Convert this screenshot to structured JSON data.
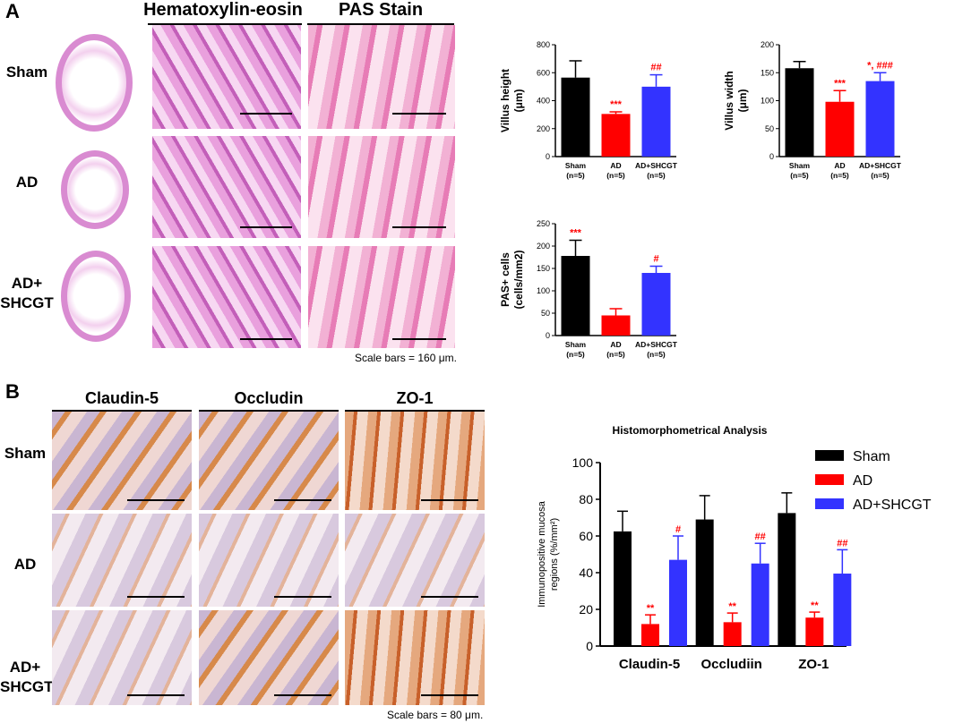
{
  "panel_a": {
    "letter": "A",
    "headers": [
      "Hematoxylin-eosin",
      "PAS Stain"
    ],
    "rows": [
      "Sham",
      "AD",
      "AD+\nSHCGT"
    ],
    "scale_note": "Scale bars = 160 μm."
  },
  "panel_b": {
    "letter": "B",
    "headers": [
      "Claudin-5",
      "Occludin",
      "ZO-1"
    ],
    "rows": [
      "Sham",
      "AD",
      "AD+\nSHCGT"
    ],
    "scale_note": "Scale bars = 80 μm."
  },
  "colors": {
    "sham": "#000000",
    "ad": "#ff0000",
    "shcgt": "#3333ff",
    "sig": "#ff0000"
  },
  "chart_data": [
    {
      "type": "bar",
      "ylabel": "Villus height\n(μm)",
      "categories": [
        "Sham\n(n=5)",
        "AD\n(n=5)",
        "AD+SHCGT\n(n=5)"
      ],
      "values": [
        565,
        305,
        500
      ],
      "errors": [
        120,
        15,
        85
      ],
      "sig": [
        "",
        "***",
        "##"
      ],
      "ylim": [
        0,
        800
      ],
      "yticks": [
        0,
        200,
        400,
        600,
        800
      ]
    },
    {
      "type": "bar",
      "ylabel": "Villus width\n(μm)",
      "categories": [
        "Sham\n(n=5)",
        "AD\n(n=5)",
        "AD+SHCGT\n(n=5)"
      ],
      "values": [
        158,
        98,
        135
      ],
      "errors": [
        12,
        20,
        15
      ],
      "sig": [
        "",
        "***",
        "*, ###"
      ],
      "ylim": [
        0,
        200
      ],
      "yticks": [
        0,
        50,
        100,
        150,
        200
      ]
    },
    {
      "type": "bar",
      "ylabel": "PAS+ cells\n(cells/mm2)",
      "categories": [
        "Sham\n(n=5)",
        "AD\n(n=5)",
        "AD+SHCGT\n(n=5)"
      ],
      "values": [
        178,
        45,
        140
      ],
      "errors": [
        35,
        15,
        15
      ],
      "sig": [
        "***",
        "",
        "#"
      ],
      "ylim": [
        0,
        250
      ],
      "yticks": [
        0,
        50,
        100,
        150,
        200,
        250
      ]
    },
    {
      "type": "bar",
      "title": "Histomorphometrical Analysis",
      "ylabel": "Immunopositive mucosa\nregions (%/mm²)",
      "categories": [
        "Claudin-5",
        "Occludiin",
        "ZO-1"
      ],
      "series": [
        {
          "name": "Sham",
          "values": [
            62.5,
            69,
            72.5
          ],
          "errors": [
            11,
            13,
            11
          ],
          "sig": [
            "",
            "",
            ""
          ]
        },
        {
          "name": "AD",
          "values": [
            12,
            13,
            15.5
          ],
          "errors": [
            5,
            5,
            3
          ],
          "sig": [
            "**",
            "**",
            "**"
          ]
        },
        {
          "name": "AD+SHCGT",
          "values": [
            47,
            45,
            39.5
          ],
          "errors": [
            13,
            11,
            13
          ],
          "sig": [
            "#",
            "##",
            "##"
          ]
        }
      ],
      "ylim": [
        0,
        100
      ],
      "yticks": [
        0,
        20,
        40,
        60,
        80,
        100
      ],
      "legend": "top-right"
    }
  ]
}
